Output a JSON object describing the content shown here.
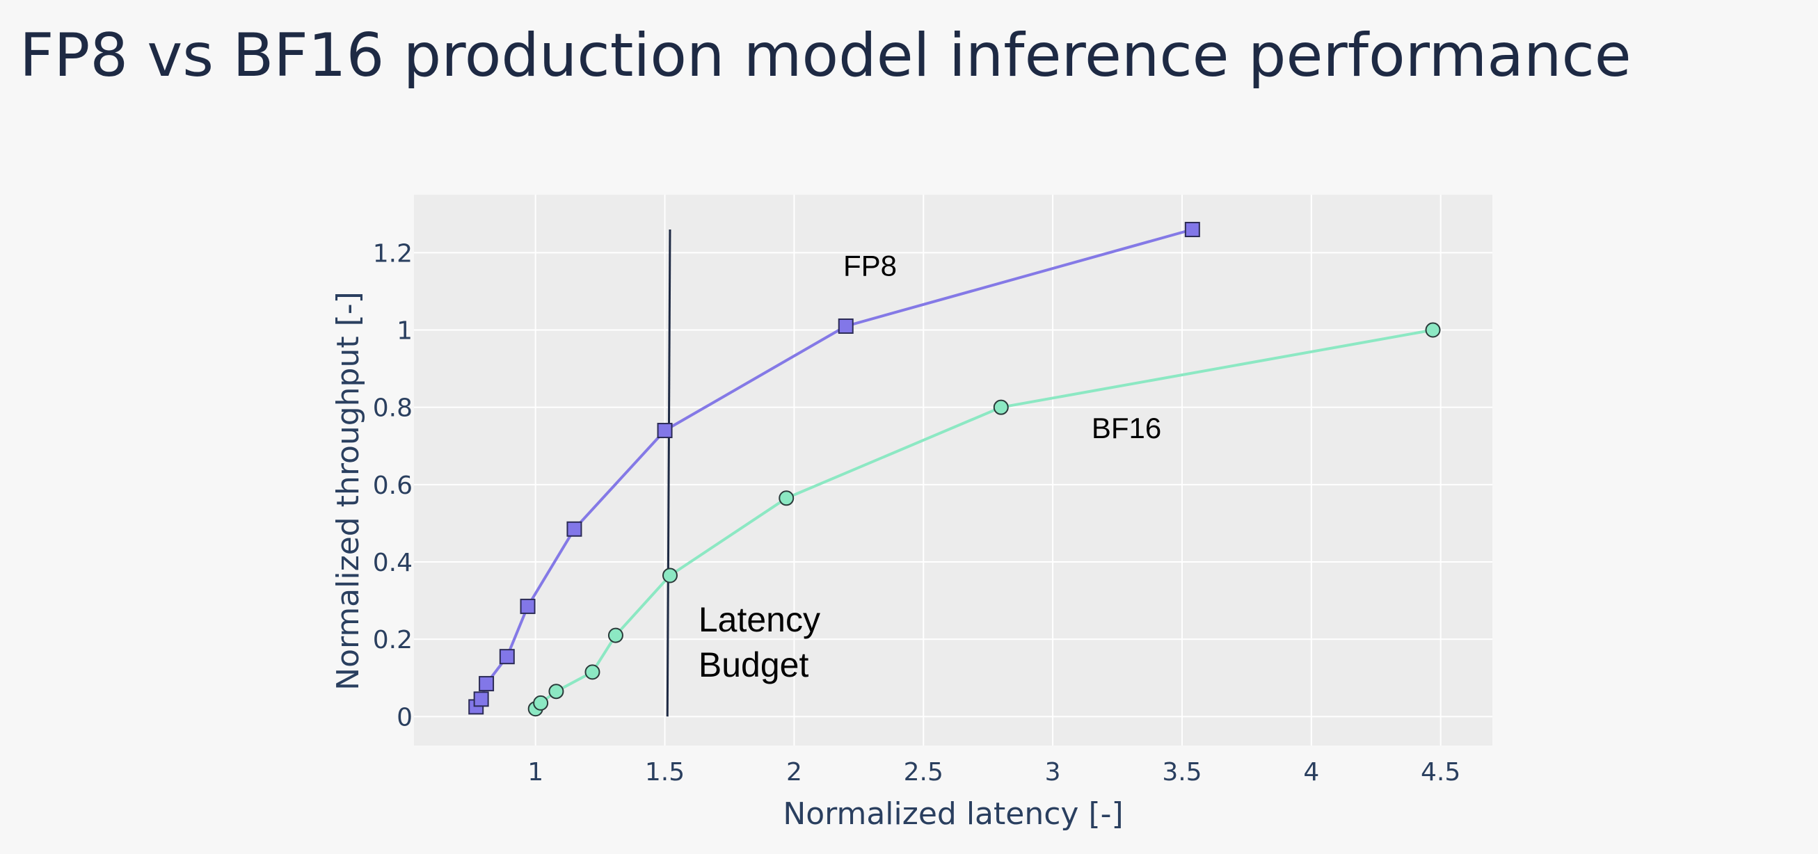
{
  "page": {
    "title": "FP8 vs BF16 production model inference performance"
  },
  "chart_data": {
    "type": "line",
    "title": "FP8 vs BF16 production model inference performance",
    "xlabel": "Normalized latency [-]",
    "ylabel": "Normalized throughput [-]",
    "xlim": [
      0.53,
      4.7
    ],
    "ylim": [
      -0.075,
      1.35
    ],
    "xticks": [
      1,
      1.5,
      2,
      2.5,
      3,
      3.5,
      4,
      4.5
    ],
    "xtick_labels": [
      "1",
      "1.5",
      "2",
      "2.5",
      "3",
      "3.5",
      "4",
      "4.5"
    ],
    "yticks": [
      0,
      0.2,
      0.4,
      0.6,
      0.8,
      1,
      1.2
    ],
    "ytick_labels": [
      "0",
      "0.2",
      "0.4",
      "0.6",
      "0.8",
      "1",
      "1.2"
    ],
    "grid": true,
    "legend": "none",
    "series": [
      {
        "name": "FP8",
        "marker": "square",
        "color": "#8479e6",
        "marker_color": "#8277e8",
        "x": [
          0.77,
          0.79,
          0.81,
          0.89,
          0.97,
          1.15,
          1.5,
          2.2,
          3.54
        ],
        "y": [
          0.025,
          0.045,
          0.085,
          0.155,
          0.285,
          0.485,
          0.74,
          1.01,
          1.26
        ]
      },
      {
        "name": "BF16",
        "marker": "circle",
        "color": "#8ce8c3",
        "marker_color": "#8ce8c3",
        "x": [
          1.0,
          1.02,
          1.08,
          1.22,
          1.31,
          1.52,
          1.97,
          2.8,
          4.47
        ],
        "y": [
          0.02,
          0.035,
          0.065,
          0.115,
          0.21,
          0.365,
          0.565,
          0.8,
          1.0
        ]
      }
    ],
    "annotations": [
      {
        "text": "FP8",
        "x": 2.19,
        "y": 1.14
      },
      {
        "text": "BF16",
        "x": 3.15,
        "y": 0.72
      },
      {
        "lines": [
          "Latency",
          "Budget"
        ],
        "x": 1.63,
        "y": 0.22
      }
    ],
    "reference_line": {
      "label": "Latency Budget",
      "x0": 1.51,
      "y0": 0.0,
      "x1": 1.52,
      "y1": 1.26,
      "color": "#1e2a44"
    }
  }
}
